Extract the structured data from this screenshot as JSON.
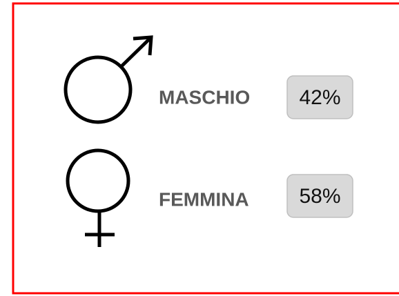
{
  "items": [
    {
      "label": "MASCHIO",
      "value": "42%"
    },
    {
      "label": "FEMMINA",
      "value": "58%"
    }
  ]
}
